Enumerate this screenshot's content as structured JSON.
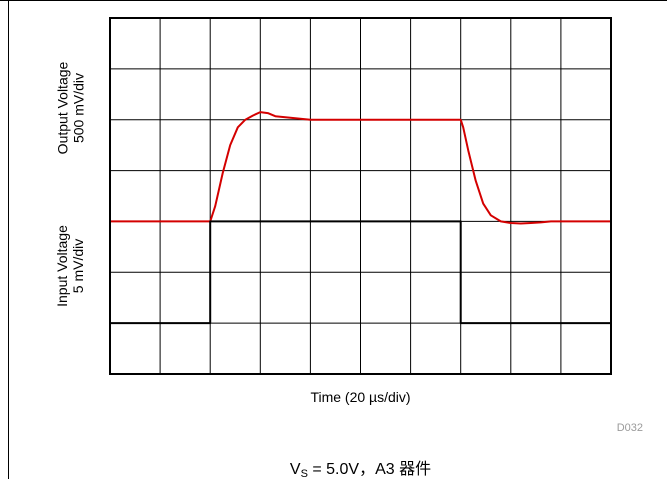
{
  "chart_data": {
    "type": "line",
    "xlabel": "Time (20 µs/div)",
    "x_divisions": 10,
    "y_divisions": 7,
    "upper_ylabel": [
      "Output Voltage",
      "500 mV/div"
    ],
    "lower_ylabel": [
      "Input Voltage",
      "5 mV/div"
    ],
    "grid": true,
    "series": [
      {
        "color": "#d40000",
        "x_div": [
          0,
          2.0,
          2.1,
          2.25,
          2.4,
          2.55,
          2.7,
          2.85,
          3.0,
          3.15,
          3.3,
          3.6,
          4.0,
          7.0,
          7.05,
          7.15,
          7.3,
          7.45,
          7.6,
          7.8,
          8.0,
          8.2,
          8.4,
          8.6,
          8.8,
          10
        ],
        "y_div": [
          3.0,
          3.0,
          3.3,
          3.95,
          4.5,
          4.85,
          5.0,
          5.08,
          5.15,
          5.13,
          5.07,
          5.04,
          5.0,
          5.0,
          4.85,
          4.4,
          3.8,
          3.35,
          3.12,
          3.0,
          2.97,
          2.96,
          2.97,
          2.98,
          3.0,
          3.0
        ]
      },
      {
        "color": "#000000",
        "x_div": [
          0,
          2.0,
          2.0,
          7.0,
          7.0,
          10
        ],
        "y_div": [
          1.0,
          1.0,
          3.0,
          3.0,
          1.0,
          1.0
        ]
      }
    ]
  },
  "figure_id": "D032",
  "caption": {
    "vs_label": "V",
    "vs_sub": "S",
    "rest": " = 5.0V，A3 器件"
  }
}
